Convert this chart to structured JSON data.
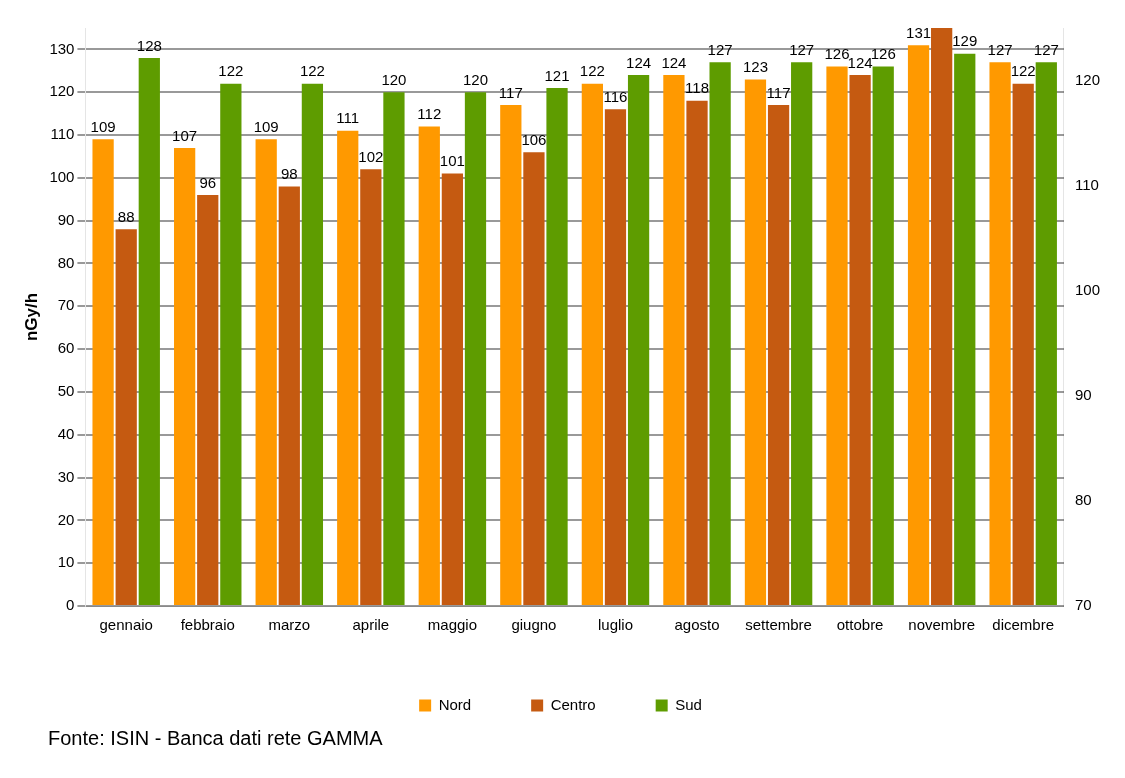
{
  "chart_data": {
    "type": "bar",
    "ylabel": "nGy/h",
    "categories": [
      "gennaio",
      "febbraio",
      "marzo",
      "aprile",
      "maggio",
      "giugno",
      "luglio",
      "agosto",
      "settembre",
      "ottobre",
      "novembre",
      "dicembre"
    ],
    "series": [
      {
        "name": "Nord",
        "color": "#ff9900",
        "values": [
          109,
          107,
          109,
          111,
          112,
          117,
          122,
          124,
          123,
          126,
          131,
          127
        ],
        "value_labels": [
          "109",
          "107",
          "109",
          "111",
          "112",
          "117",
          "122",
          "124",
          "123",
          "126",
          "131",
          "127"
        ]
      },
      {
        "name": "Centro",
        "color": "#c55a11",
        "values": [
          88,
          96,
          98,
          102,
          101,
          106,
          116,
          118,
          117,
          124,
          135,
          122
        ],
        "value_labels": [
          "88",
          "96",
          "98",
          "102",
          "101",
          "106",
          "116",
          "118",
          "117",
          "124",
          null,
          "122"
        ]
      },
      {
        "name": "Sud",
        "color": "#5e9c00",
        "values": [
          128,
          122,
          122,
          120,
          120,
          121,
          124,
          127,
          127,
          126,
          129,
          127
        ],
        "value_labels": [
          "128",
          "122",
          "122",
          "120",
          "120",
          "121",
          "124",
          "127",
          "127",
          "126",
          "129",
          "127"
        ]
      }
    ],
    "ylim": [
      0,
      135
    ],
    "yticks": [
      0,
      10,
      20,
      30,
      40,
      50,
      60,
      70,
      80,
      90,
      100,
      110,
      120,
      130
    ],
    "y2lim": [
      70,
      125
    ],
    "y2ticks": [
      70,
      80,
      90,
      100,
      110,
      120
    ],
    "grid": "y",
    "legend": "bottom",
    "annotations": [
      "Fonte: ISIN - Banca dati rete GAMMA"
    ]
  }
}
